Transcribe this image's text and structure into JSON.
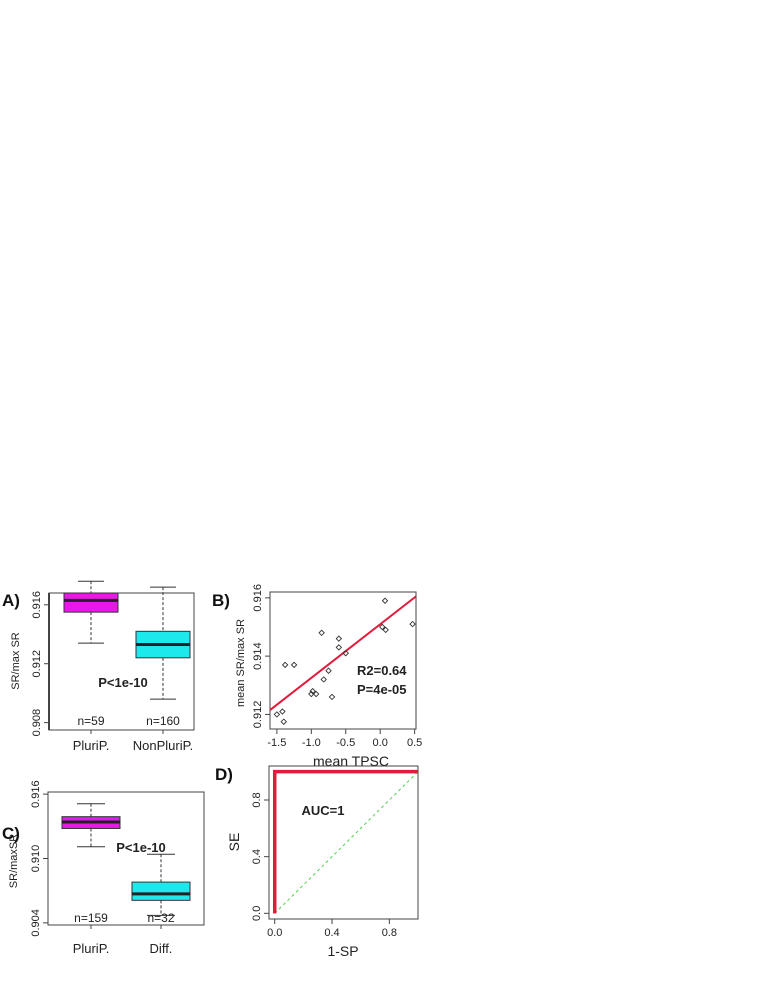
{
  "colors": {
    "pluri": "#e619e6",
    "nonpluri": "#1de8ec",
    "fit_line": "#e31a3c",
    "roc_line": "#e31a3c",
    "diagonal": "#4dd44d",
    "axis": "#444444"
  },
  "chart_data": [
    {
      "panel": "A)",
      "type": "box",
      "ylabel": "SR/max SR",
      "ylim": [
        0.9075,
        0.9168
      ],
      "yticks": [
        "0.908",
        "0.912",
        "0.916"
      ],
      "ytick_values": [
        0.908,
        0.912,
        0.916
      ],
      "categories": [
        "PluriP.",
        "NonPluriP."
      ],
      "boxes": [
        {
          "category": "PluriP.",
          "color_key": "pluri",
          "whisker_low": 0.9134,
          "q1": 0.9155,
          "median": 0.9163,
          "q3": 0.9168,
          "whisker_high": 0.9176,
          "n_label": "n=59"
        },
        {
          "category": "NonPluriP.",
          "color_key": "nonpluri",
          "whisker_low": 0.9096,
          "q1": 0.9124,
          "median": 0.9133,
          "q3": 0.9142,
          "whisker_high": 0.9172,
          "n_label": "n=160"
        }
      ],
      "annotation": "P<1e-10"
    },
    {
      "panel": "B)",
      "type": "scatter",
      "xlabel": "mean TPSC",
      "ylabel": "mean SR/max SR",
      "xlim": [
        -1.6,
        0.52
      ],
      "ylim": [
        0.9115,
        0.9162
      ],
      "xticks": [
        "-1.5",
        "-1.0",
        "-0.5",
        "0.0",
        "0.5"
      ],
      "xtick_values": [
        -1.5,
        -1.0,
        -0.5,
        0.0,
        0.5
      ],
      "yticks": [
        "0.912",
        "0.914",
        "0.916"
      ],
      "ytick_values": [
        0.912,
        0.914,
        0.916
      ],
      "points": [
        {
          "x": -1.5,
          "y": 0.912
        },
        {
          "x": -1.42,
          "y": 0.9121
        },
        {
          "x": -1.4,
          "y": 0.91175
        },
        {
          "x": -1.38,
          "y": 0.9137
        },
        {
          "x": -1.25,
          "y": 0.9137
        },
        {
          "x": -1.0,
          "y": 0.9127
        },
        {
          "x": -0.98,
          "y": 0.9128
        },
        {
          "x": -0.93,
          "y": 0.9127
        },
        {
          "x": -0.85,
          "y": 0.9148
        },
        {
          "x": -0.82,
          "y": 0.9132
        },
        {
          "x": -0.75,
          "y": 0.9135
        },
        {
          "x": -0.7,
          "y": 0.9126
        },
        {
          "x": -0.6,
          "y": 0.9146
        },
        {
          "x": -0.6,
          "y": 0.9143
        },
        {
          "x": -0.5,
          "y": 0.9141
        },
        {
          "x": 0.03,
          "y": 0.915
        },
        {
          "x": 0.07,
          "y": 0.9159
        },
        {
          "x": 0.08,
          "y": 0.9149
        },
        {
          "x": 0.47,
          "y": 0.9151
        }
      ],
      "fit": {
        "x": [
          -1.6,
          0.52
        ],
        "y": [
          0.91215,
          0.91605
        ]
      },
      "annotations": [
        "R2=0.64",
        "P=4e-05"
      ]
    },
    {
      "panel": "C)",
      "type": "box",
      "ylabel": "SR/maxSR",
      "ylim": [
        0.9038,
        0.9162
      ],
      "yticks": [
        "0.904",
        "0.910",
        "0.916"
      ],
      "ytick_values": [
        0.904,
        0.91,
        0.916
      ],
      "categories": [
        "PluriP.",
        "Diff."
      ],
      "boxes": [
        {
          "category": "PluriP.",
          "color_key": "pluri",
          "whisker_low": 0.9111,
          "q1": 0.9128,
          "median": 0.9134,
          "q3": 0.9139,
          "whisker_high": 0.9151,
          "n_label": "n=159"
        },
        {
          "category": "Diff.",
          "color_key": "nonpluri",
          "whisker_low": 0.9047,
          "q1": 0.9061,
          "median": 0.9067,
          "q3": 0.9078,
          "whisker_high": 0.9104,
          "n_label": "n=32"
        }
      ],
      "annotation": "P<1e-10"
    },
    {
      "panel": "D)",
      "type": "line",
      "xlabel": "1-SP",
      "ylabel": "SE",
      "xlim": [
        -0.04,
        1.0
      ],
      "ylim": [
        -0.04,
        1.04
      ],
      "xticks": [
        "0.0",
        "0.4",
        "0.8"
      ],
      "xtick_values": [
        0.0,
        0.4,
        0.8
      ],
      "yticks": [
        "0.0",
        "0.4",
        "0.8"
      ],
      "ytick_values": [
        0.0,
        0.4,
        0.8
      ],
      "roc": {
        "x": [
          0,
          0,
          1
        ],
        "y": [
          0,
          1,
          1
        ]
      },
      "diagonal": {
        "x": [
          0,
          1
        ],
        "y": [
          0,
          1
        ]
      },
      "annotation": "AUC=1"
    }
  ]
}
